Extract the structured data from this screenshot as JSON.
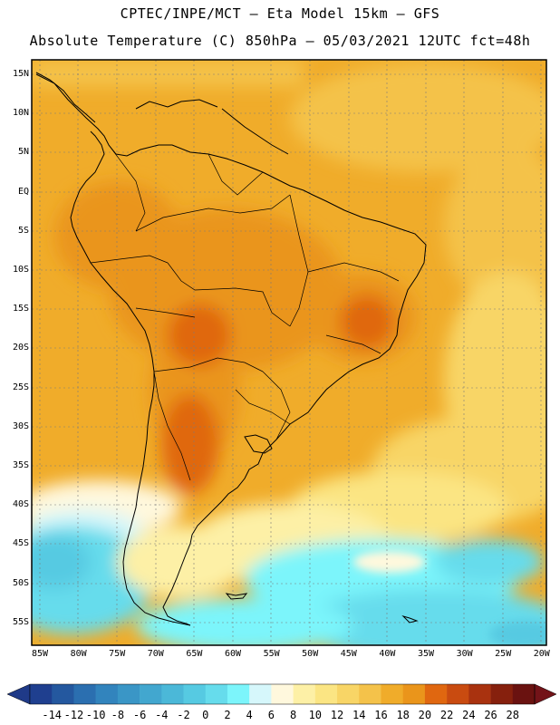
{
  "header": {
    "line1": "CPTEC/INPE/MCT –  Eta Model 15km – GFS",
    "line2": "Absolute Temperature (C) 850hPa – 05/03/2021 12UTC fct=48h"
  },
  "map": {
    "region": "South America",
    "lat_labels": [
      "15N",
      "10N",
      "5N",
      "EQ",
      "5S",
      "10S",
      "15S",
      "20S",
      "25S",
      "30S",
      "35S",
      "40S",
      "45S",
      "50S",
      "55S"
    ],
    "lon_labels": [
      "85W",
      "80W",
      "75W",
      "70W",
      "65W",
      "60W",
      "55W",
      "50W",
      "45W",
      "40W",
      "35W",
      "30W",
      "25W",
      "20W"
    ]
  },
  "colorbar": {
    "labels": [
      "-14",
      "-12",
      "-10",
      "-8",
      "-6",
      "-4",
      "-2",
      "0",
      "2",
      "4",
      "6",
      "8",
      "10",
      "12",
      "14",
      "16",
      "18",
      "20",
      "22",
      "24",
      "26",
      "28"
    ],
    "colors": [
      "#1f3f8f",
      "#24589f",
      "#2b6fb0",
      "#3284bd",
      "#3a96c6",
      "#42a7cf",
      "#4bb8d8",
      "#56cae2",
      "#66dcec",
      "#7cf5fb",
      "#d6f7fb",
      "#fff8dd",
      "#fdf0a6",
      "#fbe583",
      "#f8d566",
      "#f4c24a",
      "#f0ac2a",
      "#ea951b",
      "#e06710",
      "#c94b10",
      "#a9320f",
      "#86200d",
      "#6a1210"
    ],
    "under_color": "#1f3a88",
    "over_color": "#731318"
  }
}
